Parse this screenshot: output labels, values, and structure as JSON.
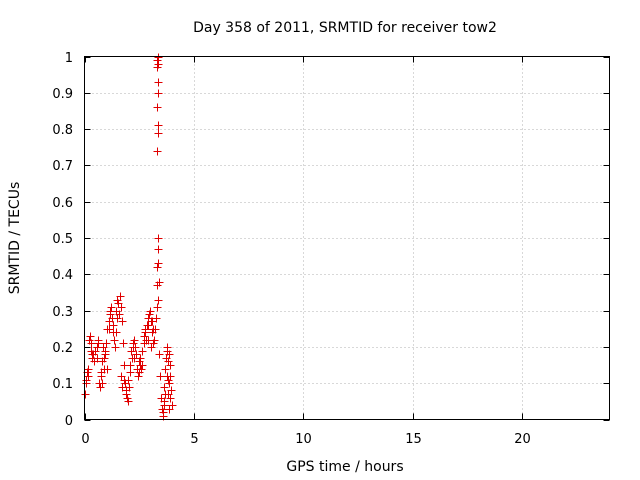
{
  "chart_data": {
    "type": "scatter",
    "title": "Day 358 of 2011, SRMTID for receiver tow2",
    "xlabel": "GPS time / hours",
    "ylabel": "SRMTID / TECUs",
    "xlim": [
      0,
      24
    ],
    "ylim": [
      0,
      1
    ],
    "x_ticks": [
      "0",
      "5",
      "10",
      "15",
      "20"
    ],
    "y_ticks": [
      "0",
      "0.1",
      "0.2",
      "0.3",
      "0.4",
      "0.5",
      "0.6",
      "0.7",
      "0.8",
      "0.9",
      "1"
    ],
    "grid": true,
    "marker": "+",
    "marker_color": "#e00000",
    "series": [
      {
        "x": [
          0.0,
          0.05,
          0.1,
          0.15,
          0.2,
          0.25,
          0.3,
          0.35,
          0.4,
          0.45,
          0.5,
          0.55,
          0.6,
          0.65,
          0.7,
          0.75,
          0.8,
          0.85,
          0.9,
          0.95,
          1.0,
          1.05,
          1.1,
          1.15,
          1.2,
          1.25,
          1.3,
          1.35,
          1.4,
          1.45,
          1.5,
          1.55,
          1.6,
          1.65,
          1.7,
          1.75,
          1.8,
          1.85,
          1.9,
          1.95,
          2.0,
          2.05,
          2.1,
          2.15,
          2.2,
          2.25,
          2.3,
          2.35,
          2.4,
          2.45,
          2.5,
          2.55,
          2.6,
          2.65,
          2.7,
          2.75,
          2.8,
          2.85,
          2.9,
          2.95,
          3.0,
          3.05,
          3.1,
          3.15,
          3.2,
          3.25,
          3.3,
          3.35,
          3.4,
          3.45,
          3.5,
          3.55,
          3.6,
          3.65,
          3.7,
          3.75,
          3.8,
          3.85,
          3.9,
          3.95,
          4.0,
          3.3,
          3.32,
          3.34,
          3.36,
          3.38,
          3.4,
          3.32,
          3.34,
          3.36,
          3.3,
          3.32,
          3.34,
          3.36,
          3.3,
          3.32,
          3.35,
          3.38,
          3.6,
          3.62,
          3.65,
          3.7,
          3.72,
          3.75,
          3.78,
          3.8,
          3.82,
          3.85,
          3.88,
          3.9,
          3.92,
          0.08,
          0.15,
          0.28,
          0.35,
          0.42,
          0.55,
          0.62,
          0.75,
          0.82,
          0.88,
          0.95,
          1.02,
          1.12,
          1.18,
          1.28,
          1.32,
          1.42,
          1.48,
          1.58,
          1.68,
          1.72,
          1.82,
          1.88,
          1.98,
          2.08,
          2.12,
          2.22,
          2.28,
          2.38,
          2.48,
          2.52,
          2.62,
          2.72,
          2.78,
          2.88,
          2.92,
          3.02,
          3.08,
          3.12,
          3.18
        ],
        "y": [
          0.07,
          0.1,
          0.13,
          0.14,
          0.22,
          0.23,
          0.19,
          0.17,
          0.18,
          0.16,
          0.19,
          0.2,
          0.22,
          0.1,
          0.09,
          0.12,
          0.16,
          0.2,
          0.14,
          0.18,
          0.21,
          0.25,
          0.27,
          0.3,
          0.31,
          0.28,
          0.26,
          0.22,
          0.2,
          0.24,
          0.28,
          0.32,
          0.34,
          0.31,
          0.27,
          0.21,
          0.15,
          0.1,
          0.08,
          0.06,
          0.05,
          0.09,
          0.13,
          0.17,
          0.21,
          0.22,
          0.2,
          0.18,
          0.14,
          0.12,
          0.16,
          0.15,
          0.14,
          0.19,
          0.23,
          0.25,
          0.22,
          0.26,
          0.28,
          0.29,
          0.3,
          0.27,
          0.24,
          0.21,
          0.25,
          0.28,
          0.31,
          0.33,
          0.18,
          0.12,
          0.06,
          0.03,
          0.01,
          0.04,
          0.07,
          0.12,
          0.16,
          0.18,
          0.12,
          0.08,
          0.04,
          0.37,
          0.42,
          0.47,
          0.5,
          0.43,
          0.38,
          0.74,
          0.79,
          0.81,
          0.86,
          0.86,
          0.9,
          0.93,
          0.97,
          0.99,
          1.0,
          0.98,
          0.02,
          0.05,
          0.09,
          0.14,
          0.17,
          0.2,
          0.19,
          0.11,
          0.07,
          0.03,
          0.1,
          0.15,
          0.06,
          0.11,
          0.12,
          0.21,
          0.18,
          0.16,
          0.17,
          0.21,
          0.13,
          0.1,
          0.17,
          0.19,
          0.14,
          0.25,
          0.29,
          0.26,
          0.24,
          0.3,
          0.33,
          0.29,
          0.12,
          0.09,
          0.11,
          0.07,
          0.11,
          0.15,
          0.19,
          0.2,
          0.17,
          0.14,
          0.13,
          0.17,
          0.15,
          0.21,
          0.24,
          0.22,
          0.26,
          0.2,
          0.27,
          0.25,
          0.22
        ]
      }
    ]
  }
}
